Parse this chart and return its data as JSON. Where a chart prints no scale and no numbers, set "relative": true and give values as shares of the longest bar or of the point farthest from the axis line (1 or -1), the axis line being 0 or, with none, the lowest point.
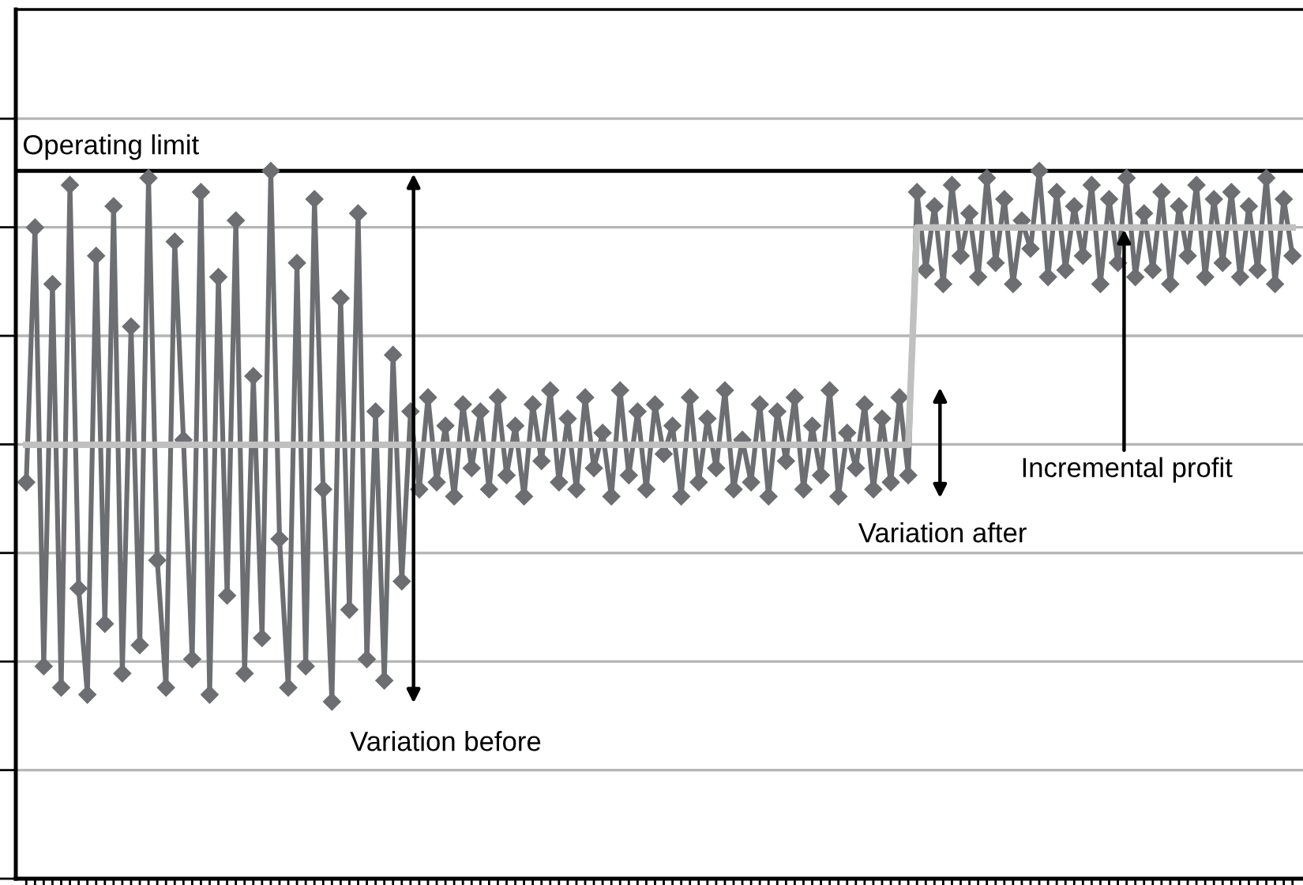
{
  "chart_data": {
    "type": "line",
    "relative": true,
    "marker": "diamond",
    "line_style": "solid",
    "grid": "y",
    "categories": [
      null,
      null,
      null,
      null,
      null,
      null,
      null,
      null,
      null,
      null,
      null,
      null,
      null,
      null,
      null,
      null,
      null,
      null,
      null,
      null,
      null,
      null,
      null,
      null,
      null,
      null,
      null,
      null,
      null,
      null,
      null,
      null,
      null,
      null,
      null,
      null,
      null,
      null,
      null,
      null,
      null,
      null,
      null,
      null,
      null,
      null,
      null,
      null,
      null,
      null,
      null,
      null,
      null,
      null,
      null,
      null,
      null,
      null,
      null,
      null,
      null,
      null,
      null,
      null,
      null,
      null,
      null,
      null,
      null,
      null,
      null,
      null,
      null,
      null,
      null,
      null,
      null,
      null,
      null,
      null,
      null,
      null,
      null,
      null,
      null,
      null,
      null,
      null,
      null,
      null,
      null,
      null,
      null,
      null,
      null,
      null,
      null,
      null,
      null,
      null,
      null,
      null,
      null,
      null,
      null,
      null,
      null,
      null,
      null,
      null,
      null,
      null,
      null,
      null,
      null,
      null,
      null,
      null,
      null,
      null,
      null,
      null,
      null,
      null,
      null,
      null,
      null,
      null,
      null,
      null,
      null,
      null,
      null,
      null,
      null,
      null,
      null,
      null,
      null,
      null,
      null,
      null,
      null,
      null,
      null,
      null
    ],
    "ref_lines": [
      {
        "axis": "y",
        "value": 1.0,
        "label": "Operating limit",
        "color": "#000000"
      }
    ],
    "annotations": [
      "Variation before",
      "Variation after",
      "Incremental profit"
    ],
    "series": [
      {
        "color": "#6d6e71",
        "values": [
          0.56,
          0.92,
          0.3,
          0.84,
          0.27,
          0.98,
          0.41,
          0.26,
          0.88,
          0.36,
          0.95,
          0.29,
          0.78,
          0.33,
          0.99,
          0.45,
          0.27,
          0.9,
          0.62,
          0.31,
          0.97,
          0.26,
          0.85,
          0.4,
          0.93,
          0.29,
          0.71,
          0.34,
          1.0,
          0.48,
          0.27,
          0.87,
          0.3,
          0.96,
          0.55,
          0.25,
          0.82,
          0.38,
          0.94,
          0.31,
          0.66,
          0.28,
          0.74,
          0.42,
          0.66,
          0.55,
          0.68,
          0.56,
          0.64,
          0.54,
          0.67,
          0.58,
          0.66,
          0.55,
          0.68,
          0.57,
          0.64,
          0.54,
          0.67,
          0.59,
          0.69,
          0.56,
          0.65,
          0.55,
          0.68,
          0.58,
          0.63,
          0.54,
          0.69,
          0.57,
          0.66,
          0.55,
          0.67,
          0.6,
          0.64,
          0.54,
          0.68,
          0.56,
          0.65,
          0.58,
          0.69,
          0.55,
          0.62,
          0.56,
          0.67,
          0.54,
          0.66,
          0.59,
          0.68,
          0.55,
          0.64,
          0.57,
          0.69,
          0.54,
          0.63,
          0.58,
          0.67,
          0.55,
          0.65,
          0.56,
          0.68,
          0.57,
          0.97,
          0.86,
          0.95,
          0.84,
          0.98,
          0.88,
          0.94,
          0.85,
          0.99,
          0.87,
          0.96,
          0.84,
          0.93,
          0.89,
          1.0,
          0.85,
          0.97,
          0.86,
          0.95,
          0.88,
          0.98,
          0.84,
          0.96,
          0.87,
          0.99,
          0.85,
          0.94,
          0.86,
          0.97,
          0.84,
          0.95,
          0.88,
          0.98,
          0.85,
          0.96,
          0.87,
          0.97,
          0.85,
          0.95,
          0.86,
          0.99,
          0.84,
          0.96,
          0.88
        ]
      },
      {
        "color": "#c0c0c0",
        "marker": "none",
        "values": [
          0.613,
          0.613,
          0.613,
          0.613,
          0.613,
          0.613,
          0.613,
          0.613,
          0.613,
          0.613,
          0.613,
          0.613,
          0.613,
          0.613,
          0.613,
          0.613,
          0.613,
          0.613,
          0.613,
          0.613,
          0.613,
          0.613,
          0.613,
          0.613,
          0.613,
          0.613,
          0.613,
          0.613,
          0.613,
          0.613,
          0.613,
          0.613,
          0.613,
          0.613,
          0.613,
          0.613,
          0.613,
          0.613,
          0.613,
          0.613,
          0.613,
          0.613,
          0.613,
          0.613,
          0.613,
          0.613,
          0.613,
          0.613,
          0.613,
          0.613,
          0.613,
          0.613,
          0.613,
          0.613,
          0.613,
          0.613,
          0.613,
          0.613,
          0.613,
          0.613,
          0.613,
          0.613,
          0.613,
          0.613,
          0.613,
          0.613,
          0.613,
          0.613,
          0.613,
          0.613,
          0.613,
          0.613,
          0.613,
          0.613,
          0.613,
          0.613,
          0.613,
          0.613,
          0.613,
          0.613,
          0.613,
          0.613,
          0.613,
          0.613,
          0.613,
          0.613,
          0.613,
          0.613,
          0.613,
          0.613,
          0.613,
          0.613,
          0.613,
          0.613,
          0.613,
          0.613,
          0.613,
          0.613,
          0.613,
          0.613,
          0.613,
          0.613,
          0.92,
          0.92,
          0.92,
          0.92,
          0.92,
          0.92,
          0.92,
          0.92,
          0.92,
          0.92,
          0.92,
          0.92,
          0.92,
          0.92,
          0.92,
          0.92,
          0.92,
          0.92,
          0.92,
          0.92,
          0.92,
          0.92,
          0.92,
          0.92,
          0.92,
          0.92,
          0.92,
          0.92,
          0.92,
          0.92,
          0.92,
          0.92,
          0.92,
          0.92,
          0.92,
          0.92,
          0.92,
          0.92,
          0.92,
          0.92,
          0.92,
          0.92,
          0.92,
          0.92
        ]
      }
    ]
  }
}
